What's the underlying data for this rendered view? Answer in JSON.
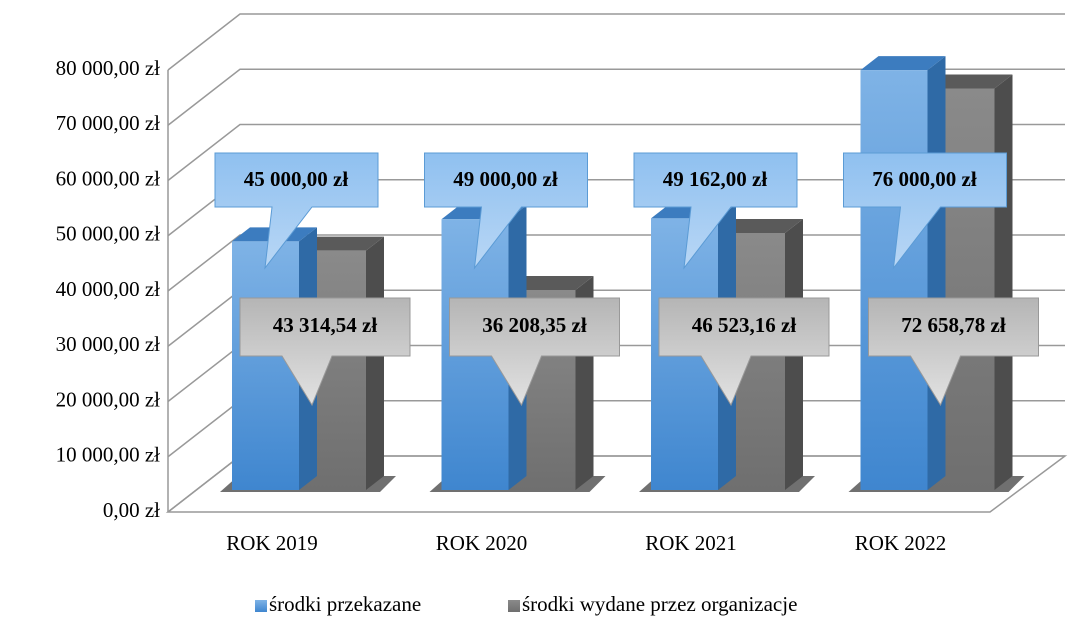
{
  "chart_data": {
    "type": "bar3d",
    "categories": [
      "ROK 2019",
      "ROK 2020",
      "ROK 2021",
      "ROK 2022"
    ],
    "series": [
      {
        "name": "środki przekazane",
        "color": "#5b9bd5",
        "values": [
          45000,
          49000,
          49162,
          76000
        ],
        "value_labels": [
          "45 000,00 zł",
          "49 000,00 zł",
          "49 162,00 zł",
          "76 000,00 zł"
        ]
      },
      {
        "name": "środki wydane przez organizacje",
        "color": "#7f7f7f",
        "values": [
          43314.54,
          36208.35,
          46523.16,
          72658.78
        ],
        "value_labels": [
          "43 314,54 zł",
          "36 208,35 zł",
          "46 523,16 zł",
          "72 658,78 zł"
        ]
      }
    ],
    "ylim": [
      0,
      80000
    ],
    "yticks": [
      {
        "value": 0,
        "label": "0,00 zł"
      },
      {
        "value": 10000,
        "label": "10 000,00 zł"
      },
      {
        "value": 20000,
        "label": "20 000,00 zł"
      },
      {
        "value": 30000,
        "label": "30 000,00 zł"
      },
      {
        "value": 40000,
        "label": "40 000,00 zł"
      },
      {
        "value": 50000,
        "label": "50 000,00 zł"
      },
      {
        "value": 60000,
        "label": "60 000,00 zł"
      },
      {
        "value": 70000,
        "label": "70 000,00 zł"
      },
      {
        "value": 80000,
        "label": "80 000,00 zł"
      }
    ],
    "grid": true,
    "legend": "bottom"
  }
}
